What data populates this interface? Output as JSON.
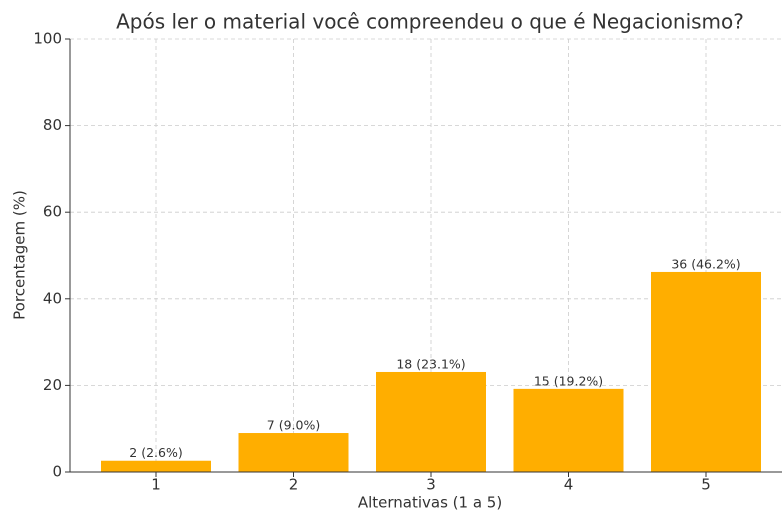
{
  "chart_data": {
    "type": "bar",
    "title": "Após ler o material você compreendeu o que é Negacionismo?",
    "x_label": "Alternativas (1 a 5)",
    "y_label": "Porcentagem (%)",
    "categories": [
      "1",
      "2",
      "3",
      "4",
      "5"
    ],
    "values": [
      2.6,
      9.0,
      23.1,
      19.2,
      46.2
    ],
    "value_labels": [
      "2 (2.6%)",
      "7 (9.0%)",
      "18 (23.1%)",
      "15 (19.2%)",
      "36 (46.2%)"
    ],
    "color": "#ffae00",
    "ylim": [
      0,
      100
    ],
    "yticks": [
      0,
      20,
      40,
      60,
      80,
      100
    ],
    "grid": true
  }
}
